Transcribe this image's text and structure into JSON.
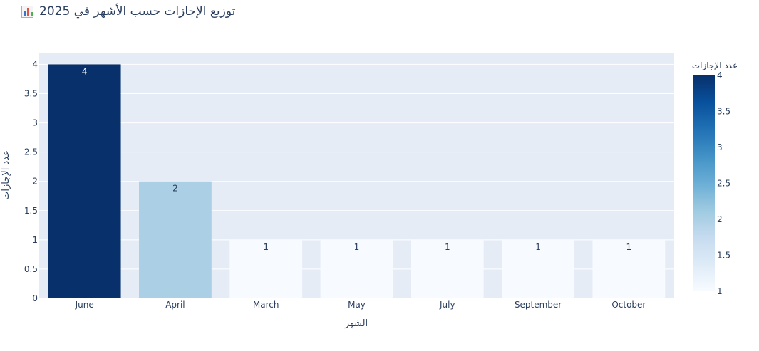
{
  "title": "توزيع الإجازات حسب الأشهر في 2025",
  "title_icon": "bar-chart-icon",
  "colors": {
    "plot_bg": "#e5ecf6",
    "grid": "#ffffff",
    "text": "#2a3f5f",
    "colorscale": [
      "#f7fbff",
      "#deebf7",
      "#c6dbef",
      "#9ecae1",
      "#6baed6",
      "#4292c6",
      "#2171b5",
      "#08519c",
      "#08306b"
    ]
  },
  "chart_data": {
    "type": "bar",
    "categories": [
      "June",
      "April",
      "March",
      "May",
      "July",
      "September",
      "October"
    ],
    "values": [
      4,
      2,
      1,
      1,
      1,
      1,
      1
    ],
    "data_labels": [
      "4",
      "2",
      "1",
      "1",
      "1",
      "1",
      "1"
    ],
    "xlabel": "الشهر",
    "ylabel": "عدد الإجازات",
    "ylim": [
      0,
      4.2
    ],
    "yticks": [
      "0",
      "0.5",
      "1",
      "1.5",
      "2",
      "2.5",
      "3",
      "3.5",
      "4"
    ],
    "grid": true,
    "colorbar": {
      "title": "عدد الإجازات",
      "range": [
        1,
        4
      ],
      "ticks": [
        "1",
        "1.5",
        "2",
        "2.5",
        "3",
        "3.5",
        "4"
      ]
    }
  }
}
